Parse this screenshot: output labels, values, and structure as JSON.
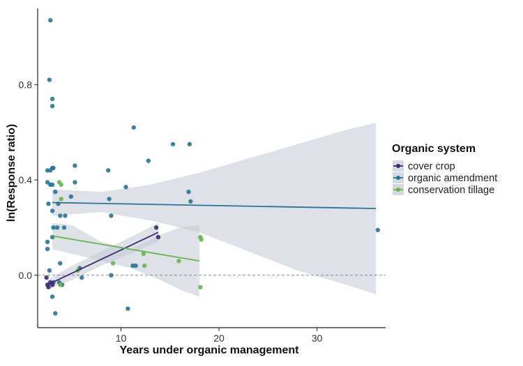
{
  "chart_data": {
    "type": "scatter",
    "title": "",
    "xlabel": "Years under organic management",
    "ylabel": "ln(Response ratio)",
    "xlim": [
      1.5,
      37
    ],
    "ylim": [
      -0.22,
      1.12
    ],
    "x_ticks": [
      10,
      20,
      30
    ],
    "y_ticks": [
      0.0,
      0.4,
      0.8
    ],
    "y_tick_labels": [
      "0.0",
      "0.4",
      "0.8"
    ],
    "reference_line": {
      "y": 0,
      "style": "dashed"
    },
    "grid": false,
    "legend": {
      "title": "Organic system",
      "placement": "right",
      "entries": [
        "cover crop",
        "organic amendment",
        "conservation tillage"
      ]
    },
    "colors": {
      "cover crop": "#3e2a6e",
      "organic amendment": "#2a7491",
      "conservation tillage": "#6bb34e",
      "ribbon": "#c3cad6"
    },
    "series": [
      {
        "name": "organic amendment",
        "points": [
          [
            2.8,
            1.07
          ],
          [
            2.7,
            0.82
          ],
          [
            3.0,
            0.74
          ],
          [
            3.0,
            0.71
          ],
          [
            2.5,
            0.44
          ],
          [
            2.8,
            0.44
          ],
          [
            3.0,
            0.45
          ],
          [
            3.1,
            0.45
          ],
          [
            2.5,
            0.39
          ],
          [
            2.8,
            0.38
          ],
          [
            3.0,
            0.38
          ],
          [
            2.6,
            0.3
          ],
          [
            3.0,
            0.27
          ],
          [
            3.3,
            0.35
          ],
          [
            3.6,
            0.3
          ],
          [
            3.8,
            0.25
          ],
          [
            4.3,
            0.25
          ],
          [
            3.1,
            0.2
          ],
          [
            3.5,
            0.2
          ],
          [
            4.2,
            0.2
          ],
          [
            2.5,
            0.14
          ],
          [
            2.5,
            0.11
          ],
          [
            3.0,
            0.16
          ],
          [
            2.7,
            0.02
          ],
          [
            3.1,
            -0.03
          ],
          [
            3.0,
            -0.09
          ],
          [
            3.3,
            -0.16
          ],
          [
            3.8,
            0.05
          ],
          [
            3.7,
            -0.03
          ],
          [
            4.0,
            -0.04
          ],
          [
            4.9,
            0.33
          ],
          [
            5.3,
            0.46
          ],
          [
            5.3,
            0.39
          ],
          [
            6.0,
            -0.01
          ],
          [
            5.8,
            0.03
          ],
          [
            8.7,
            0.44
          ],
          [
            8.8,
            0.32
          ],
          [
            9.0,
            0.25
          ],
          [
            9.0,
            0.0
          ],
          [
            10.5,
            0.37
          ],
          [
            10.7,
            -0.14
          ],
          [
            11.2,
            0.04
          ],
          [
            11.3,
            0.62
          ],
          [
            11.5,
            0.04
          ],
          [
            12.8,
            0.48
          ],
          [
            15.3,
            0.55
          ],
          [
            17.0,
            0.55
          ],
          [
            16.9,
            0.35
          ],
          [
            17.1,
            0.31
          ],
          [
            36.2,
            0.19
          ]
        ],
        "trend": {
          "x": [
            3,
            36
          ],
          "y": [
            0.305,
            0.28
          ]
        },
        "ribbon": {
          "x": [
            3,
            8,
            13,
            18,
            23,
            28,
            33,
            36
          ],
          "lo": [
            0.25,
            0.265,
            0.23,
            0.18,
            0.1,
            0.02,
            -0.04,
            -0.08
          ],
          "hi": [
            0.36,
            0.35,
            0.38,
            0.43,
            0.49,
            0.55,
            0.61,
            0.64
          ]
        }
      },
      {
        "name": "cover crop",
        "points": [
          [
            2.4,
            -0.01
          ],
          [
            2.5,
            -0.04
          ],
          [
            2.6,
            -0.05
          ],
          [
            2.8,
            -0.03
          ],
          [
            3.0,
            -0.04
          ],
          [
            13.6,
            0.2
          ],
          [
            13.8,
            0.16
          ]
        ],
        "trend": {
          "x": [
            2.5,
            13.8
          ],
          "y": [
            -0.04,
            0.18
          ]
        },
        "ribbon": {
          "x": [
            2.5,
            5,
            8,
            11,
            13.8
          ],
          "lo": [
            -0.06,
            -0.02,
            0.04,
            0.09,
            0.14
          ],
          "hi": [
            -0.02,
            0.04,
            0.1,
            0.16,
            0.22
          ]
        }
      },
      {
        "name": "conservation tillage",
        "points": [
          [
            3.7,
            0.39
          ],
          [
            3.9,
            0.38
          ],
          [
            3.9,
            0.32
          ],
          [
            3.8,
            -0.04
          ],
          [
            5.6,
            0.02
          ],
          [
            9.2,
            0.05
          ],
          [
            12.3,
            0.09
          ],
          [
            12.4,
            0.04
          ],
          [
            15.9,
            0.06
          ],
          [
            18.1,
            0.16
          ],
          [
            18.2,
            0.15
          ],
          [
            18.1,
            -0.05
          ]
        ],
        "trend": {
          "x": [
            3,
            18
          ],
          "y": [
            0.165,
            0.06
          ]
        },
        "ribbon": {
          "x": [
            3,
            5,
            8,
            11,
            14,
            16,
            18
          ],
          "lo": [
            0.11,
            0.09,
            0.06,
            0.03,
            -0.02,
            -0.06,
            -0.09
          ],
          "hi": [
            0.22,
            0.21,
            0.14,
            0.11,
            0.17,
            0.2,
            0.21
          ]
        }
      }
    ]
  }
}
